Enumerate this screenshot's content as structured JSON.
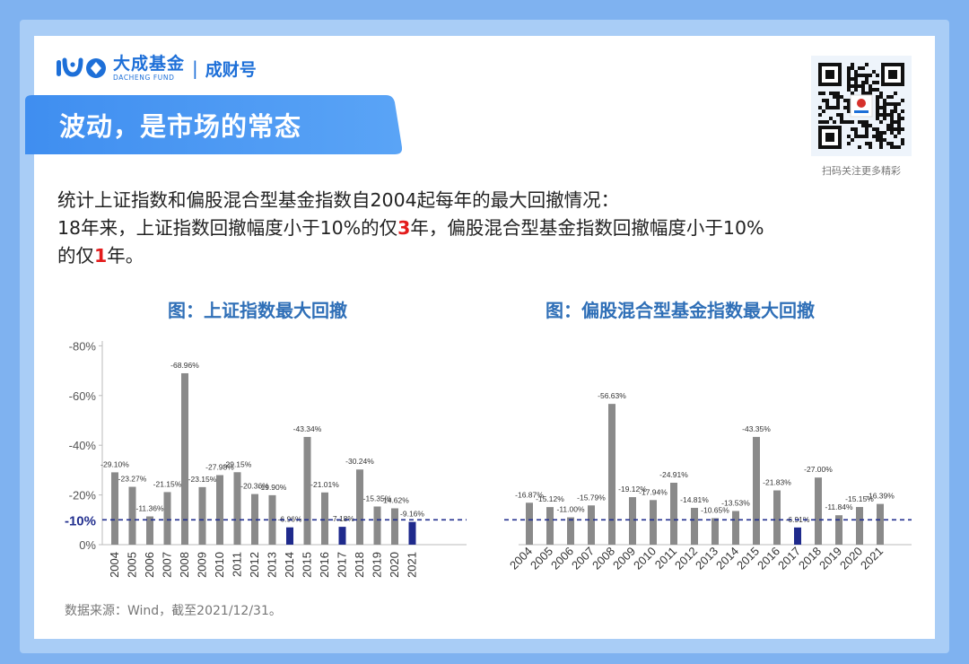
{
  "header": {
    "brand_cn": "大成基金",
    "brand_en": "DACHENG FUND",
    "separator": "|",
    "channel": "成财号"
  },
  "banner": {
    "title": "波动，是市场的常态"
  },
  "qr": {
    "caption": "扫码关注更多精彩"
  },
  "intro": {
    "line1": "统计上证指数和偏股混合型基金指数自2004起每年的最大回撤情况：",
    "line2_part1": "18年来，上证指数回撤幅度小于10%的仅",
    "line2_num": "3",
    "line2_part2": "年，偏股混合型基金指数回撤幅度小于10%",
    "line3_part1": "的仅",
    "line3_num": "1",
    "line3_part2": "年。"
  },
  "source": "数据来源：Wind，截至2021/12/31。",
  "colors": {
    "normal_bar": "#8a8a8a",
    "highlight_bar": "#1f2a8c",
    "ref_line": "#23308f",
    "title": "#2f6fb7",
    "accent": "#1d6fd8"
  },
  "chart_data": [
    {
      "type": "bar",
      "title": "图：上证指数最大回撤",
      "categories": [
        "2004",
        "2005",
        "2006",
        "2007",
        "2008",
        "2009",
        "2010",
        "2011",
        "2012",
        "2013",
        "2014",
        "2015",
        "2016",
        "2017",
        "2018",
        "2019",
        "2020",
        "2021"
      ],
      "values": [
        29.1,
        23.27,
        11.36,
        21.15,
        68.96,
        23.15,
        27.98,
        29.15,
        20.36,
        19.9,
        6.96,
        43.34,
        21.01,
        7.18,
        30.24,
        15.35,
        14.62,
        9.16
      ],
      "labels": [
        "-29.10%",
        "-23.27%",
        "-11.36%",
        "-21.15%",
        "-68.96%",
        "-23.15%",
        "-27.98%",
        "-29.15%",
        "-20.36%",
        "-19.90%",
        "-6.96%",
        "-43.34%",
        "-21.01%",
        "-7.18%",
        "-30.24%",
        "-15.35%",
        "-14.62%",
        "-9.16%"
      ],
      "highlight": [
        false,
        false,
        false,
        false,
        false,
        false,
        false,
        false,
        false,
        false,
        true,
        false,
        false,
        true,
        false,
        false,
        false,
        true
      ],
      "yticks": [
        "-80%",
        "-60%",
        "-40%",
        "-20%",
        "0%"
      ],
      "ylim": [
        0,
        80
      ],
      "reference": {
        "value": 10,
        "label": "-10%"
      }
    },
    {
      "type": "bar",
      "title": "图：偏股混合型基金指数最大回撤",
      "categories": [
        "2004",
        "2005",
        "2006",
        "2007",
        "2008",
        "2009",
        "2010",
        "2011",
        "2012",
        "2013",
        "2014",
        "2015",
        "2016",
        "2017",
        "2018",
        "2019",
        "2020",
        "2021"
      ],
      "values": [
        16.87,
        15.12,
        11.0,
        15.79,
        56.63,
        19.12,
        17.94,
        24.91,
        14.81,
        10.65,
        13.53,
        43.35,
        21.83,
        6.91,
        27.0,
        11.84,
        15.15,
        16.39
      ],
      "labels": [
        "-16.87%",
        "-15.12%",
        "-11.00%",
        "-15.79%",
        "-56.63%",
        "-19.12%",
        "-17.94%",
        "-24.91%",
        "-14.81%",
        "-10.65%",
        "-13.53%",
        "-43.35%",
        "-21.83%",
        "-6.91%",
        "-27.00%",
        "-11.84%",
        "-15.15%",
        "-16.39%"
      ],
      "highlight": [
        false,
        false,
        false,
        false,
        false,
        false,
        false,
        false,
        false,
        false,
        false,
        false,
        false,
        true,
        false,
        false,
        false,
        false
      ],
      "ylim": [
        0,
        80
      ],
      "reference": {
        "value": 10
      }
    }
  ]
}
